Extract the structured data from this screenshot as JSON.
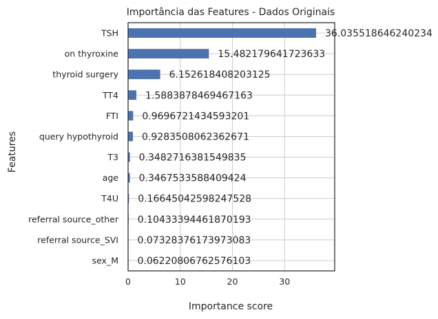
{
  "chart_data": {
    "type": "bar",
    "orientation": "horizontal",
    "title": "Importância das Features - Dados Originais",
    "xlabel": "Importance score",
    "ylabel": "Features",
    "xlim": [
      0,
      39.6
    ],
    "xticks": [
      0,
      10,
      20,
      30
    ],
    "grid": true,
    "bar_color": "#4c72b0",
    "categories": [
      "TSH",
      "on thyroxine",
      "thyroid surgery",
      "TT4",
      "FTI",
      "query hypothyroid",
      "T3",
      "age",
      "T4U",
      "referral source_other",
      "referral source_SVI",
      "sex_M"
    ],
    "values": [
      36.035518646240234,
      15.482179641723633,
      6.152618408203125,
      1.5883878469467163,
      0.9696721434593201,
      0.9283508062362671,
      0.3482716381549835,
      0.3467533588409424,
      0.16645042598247528,
      0.10433394461870193,
      0.07328376173973083,
      0.06220806762576103
    ],
    "value_labels": [
      "36.035518646240234",
      "15.482179641723633",
      "6.152618408203125",
      "1.5883878469467163",
      "0.9696721434593201",
      "0.9283508062362671",
      "0.3482716381549835",
      "0.3467533588409424",
      "0.16645042598247528",
      "0.10433394461870193",
      "0.07328376173973083",
      "0.06220806762576103"
    ]
  }
}
